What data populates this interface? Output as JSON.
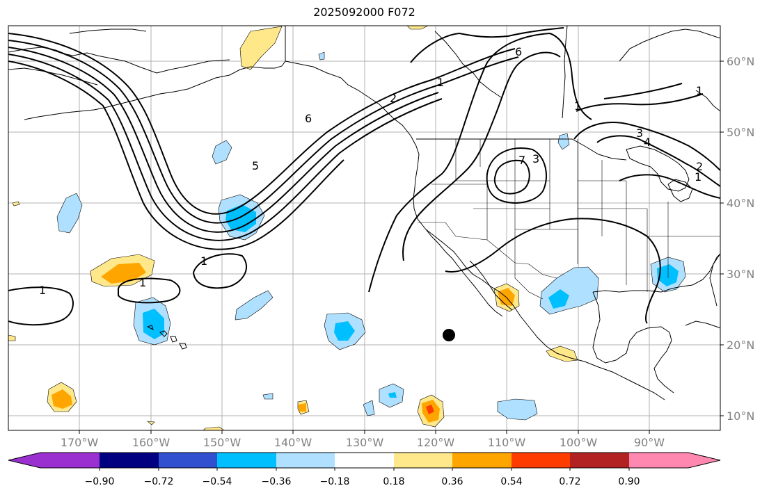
{
  "title": "2025092000 F072",
  "lon_labels": [
    "170°W",
    "160°W",
    "150°W",
    "140°W",
    "130°W",
    "120°W",
    "110°W",
    "100°W",
    "90°W"
  ],
  "lat_labels": [
    "60°N",
    "50°N",
    "40°N",
    "30°N",
    "20°N",
    "10°N"
  ],
  "colorbar": {
    "ticks": [
      "−0.90",
      "−0.72",
      "−0.54",
      "−0.36",
      "−0.18",
      "0.18",
      "0.36",
      "0.54",
      "0.72",
      "0.90"
    ],
    "colors": [
      "#9b30d0",
      "#000080",
      "#3050d0",
      "#00bfff",
      "#b0e0ff",
      "#ffffff",
      "#ffe88a",
      "#ffa500",
      "#ff3c00",
      "#b22222",
      "#ff88b0"
    ]
  },
  "contour_labels": [
    "6",
    "1",
    "2",
    "6",
    "1",
    "7",
    "3",
    "1",
    "3",
    "4",
    "1",
    "2",
    "5",
    "1",
    "1",
    "1"
  ],
  "marker": {
    "lon": -118.5,
    "lat": 21.5
  }
}
